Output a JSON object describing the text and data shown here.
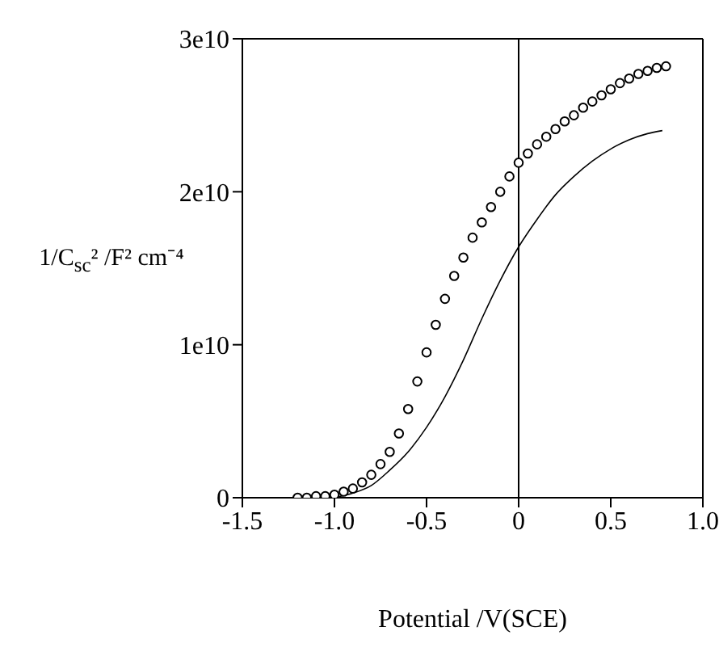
{
  "chart_data": {
    "type": "line",
    "xlabel": "Potential /V(SCE)",
    "ylabel": "1/C$_{sc}$² /F² cm⁻⁴",
    "xlim": [
      -1.5,
      1.0
    ],
    "xticks": [
      {
        "value": -1.5,
        "label": "-1.5"
      },
      {
        "value": -1.0,
        "label": "-1.0"
      },
      {
        "value": -0.5,
        "label": "-0.5"
      },
      0,
      {
        "value": 0.5,
        "label": "0.5"
      },
      {
        "value": 1.0,
        "label": "1.0"
      }
    ],
    "ylim": [
      0,
      30000000000.0
    ],
    "yticks": [
      0,
      {
        "value": 10000000000.0,
        "label": "1e10"
      },
      {
        "value": 20000000000.0,
        "label": "2e10"
      },
      {
        "value": 30000000000.0,
        "label": "3e10"
      }
    ],
    "legend": false,
    "ref_lines": [
      {
        "axis": "x",
        "value": 0,
        "color": "#000000"
      }
    ],
    "series": [
      {
        "type": "scatter",
        "marker": "circle",
        "color": "#000000",
        "x": [
          -1.2,
          -1.15,
          -1.1,
          -1.05,
          -1.0,
          -0.95,
          -0.9,
          -0.85,
          -0.8,
          -0.75,
          -0.7,
          -0.65,
          -0.6,
          -0.55,
          -0.5,
          -0.45,
          -0.4,
          -0.35,
          -0.3,
          -0.25,
          -0.2,
          -0.15,
          -0.1,
          -0.05,
          0,
          0.05,
          0.1,
          0.15,
          0.2,
          0.25,
          0.3,
          0.35,
          0.4,
          0.45,
          0.5,
          0.55,
          0.6,
          0.65,
          0.7,
          0.75,
          0.8
        ],
        "values": [
          0,
          0,
          100000000.0,
          100000000.0,
          200000000.0,
          400000000.0,
          600000000.0,
          1000000000.0,
          1500000000.0,
          2200000000.0,
          3000000000.0,
          4200000000.0,
          5800000000.0,
          7600000000.0,
          9500000000.0,
          11300000000.0,
          13000000000.0,
          14500000000.0,
          15700000000.0,
          17000000000.0,
          18000000000.0,
          19000000000.0,
          20000000000.0,
          21000000000.0,
          21900000000.0,
          22500000000.0,
          23100000000.0,
          23600000000.0,
          24100000000.0,
          24600000000.0,
          25000000000.0,
          25500000000.0,
          25900000000.0,
          26300000000.0,
          26700000000.0,
          27100000000.0,
          27400000000.0,
          27700000000.0,
          27900000000.0,
          28100000000.0,
          28200000000.0
        ]
      },
      {
        "marker": "none",
        "color": "#000000",
        "x": [
          -1.0,
          -0.9,
          -0.8,
          -0.7,
          -0.6,
          -0.5,
          -0.4,
          -0.3,
          -0.2,
          -0.1,
          0,
          0.1,
          0.2,
          0.3,
          0.4,
          0.5,
          0.6,
          0.7,
          0.78
        ],
        "values": [
          0,
          300000000.0,
          800000000.0,
          1800000000.0,
          3000000000.0,
          4600000000.0,
          6600000000.0,
          9000000000.0,
          11700000000.0,
          14200000000.0,
          16400000000.0,
          18200000000.0,
          19800000000.0,
          21000000000.0,
          22000000000.0,
          22800000000.0,
          23400000000.0,
          23800000000.0,
          24000000000.0
        ]
      }
    ]
  }
}
